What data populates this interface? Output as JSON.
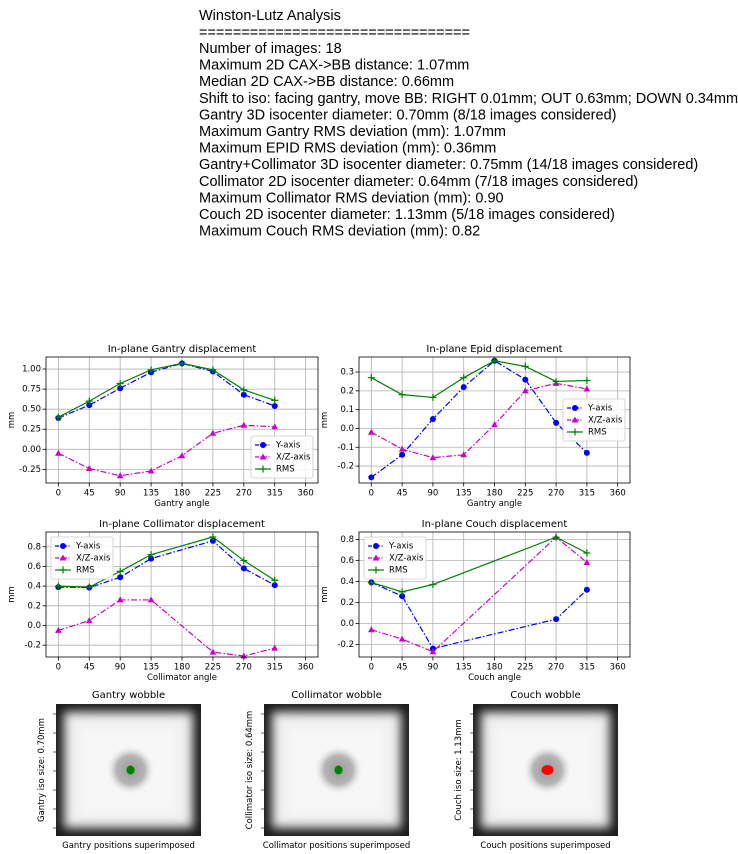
{
  "report": {
    "title": "Winston-Lutz Analysis",
    "separator": "================================",
    "lines": [
      "Number of images: 18",
      "Maximum 2D CAX->BB distance: 1.07mm",
      "Median 2D CAX->BB distance: 0.66mm",
      "Shift to iso: facing gantry, move BB: RIGHT 0.01mm; OUT 0.63mm; DOWN 0.34mm",
      "Gantry 3D isocenter diameter: 0.70mm (8/18 images considered)",
      "Maximum Gantry RMS deviation (mm): 1.07mm",
      "Maximum EPID RMS deviation (mm): 0.36mm",
      "Gantry+Collimator 3D isocenter diameter: 0.75mm (14/18 images considered)",
      "Collimator 2D isocenter diameter: 0.64mm (7/18 images considered)",
      "Maximum Collimator RMS deviation (mm): 0.90",
      "Couch 2D isocenter diameter: 1.13mm (5/18 images considered)",
      "Maximum Couch RMS deviation (mm): 0.82"
    ]
  },
  "chart_data": [
    {
      "type": "line",
      "title": "In-plane Gantry displacement",
      "xlabel": "Gantry angle",
      "ylabel": "mm",
      "x": [
        0,
        45,
        90,
        135,
        180,
        225,
        270,
        315
      ],
      "series": [
        {
          "name": "Y-axis",
          "color": "#0000ff",
          "values": [
            0.39,
            0.55,
            0.76,
            0.96,
            1.07,
            0.97,
            0.68,
            0.54
          ]
        },
        {
          "name": "X/Z-axis",
          "color": "#cc00cc",
          "values": [
            -0.05,
            -0.24,
            -0.33,
            -0.27,
            -0.08,
            0.2,
            0.3,
            0.28
          ]
        },
        {
          "name": "RMS",
          "color": "#008000",
          "values": [
            0.4,
            0.6,
            0.82,
            0.99,
            1.07,
            0.99,
            0.74,
            0.61
          ]
        }
      ],
      "xlim": [
        -18,
        378
      ],
      "xticks": [
        0,
        45,
        90,
        135,
        180,
        225,
        270,
        315,
        360
      ],
      "ylim": [
        -0.42,
        1.15
      ],
      "yticks": [
        -0.25,
        {
          "value": 0,
          "label": "0.00"
        },
        0.25,
        {
          "value": 0.5,
          "label": "0.50"
        },
        0.75,
        {
          "value": 1,
          "label": "1.00"
        }
      ],
      "grid": true,
      "legend": "lower right"
    },
    {
      "type": "line",
      "title": "In-plane Epid displacement",
      "xlabel": "Gantry angle",
      "ylabel": "mm",
      "x": [
        0,
        45,
        90,
        135,
        180,
        225,
        270,
        315
      ],
      "series": [
        {
          "name": "Y-axis",
          "color": "#0000ff",
          "values": [
            -0.26,
            -0.14,
            0.05,
            0.22,
            0.36,
            0.26,
            0.03,
            -0.13
          ]
        },
        {
          "name": "X/Z-axis",
          "color": "#cc00cc",
          "values": [
            -0.02,
            -0.11,
            -0.155,
            -0.14,
            0.02,
            0.2,
            0.24,
            0.21
          ]
        },
        {
          "name": "RMS",
          "color": "#008000",
          "values": [
            0.27,
            0.18,
            0.165,
            0.27,
            0.36,
            0.33,
            0.25,
            0.255
          ]
        }
      ],
      "xlim": [
        -18,
        378
      ],
      "xticks": [
        0,
        45,
        90,
        135,
        180,
        225,
        270,
        315,
        360
      ],
      "ylim": [
        -0.29,
        0.38
      ],
      "yticks": [
        -0.2,
        -0.1,
        {
          "value": 0,
          "label": "0.0"
        },
        0.1,
        0.2,
        0.3
      ],
      "grid": true,
      "legend": "center right"
    },
    {
      "type": "line",
      "title": "In-plane Collimator displacement",
      "xlabel": "Collimator angle",
      "ylabel": "mm",
      "x": [
        0,
        45,
        90,
        135,
        225,
        270,
        315
      ],
      "series": [
        {
          "name": "Y-axis",
          "color": "#0000ff",
          "values": [
            0.39,
            0.385,
            0.49,
            0.68,
            0.86,
            0.58,
            0.41
          ]
        },
        {
          "name": "X/Z-axis",
          "color": "#cc00cc",
          "values": [
            -0.05,
            0.05,
            0.26,
            0.26,
            -0.27,
            -0.31,
            -0.23
          ]
        },
        {
          "name": "RMS",
          "color": "#008000",
          "values": [
            0.4,
            0.39,
            0.55,
            0.72,
            0.9,
            0.66,
            0.46
          ]
        }
      ],
      "xlim": [
        -18,
        378
      ],
      "xticks": [
        0,
        45,
        90,
        135,
        180,
        225,
        270,
        315,
        360
      ],
      "ylim": [
        -0.32,
        0.95
      ],
      "yticks": [
        -0.2,
        {
          "value": 0,
          "label": "0.0"
        },
        0.2,
        0.4,
        0.6,
        0.8
      ],
      "grid": true,
      "legend": "upper left"
    },
    {
      "type": "line",
      "title": "In-plane Couch displacement",
      "xlabel": "Couch angle",
      "ylabel": "mm",
      "x": [
        0,
        45,
        90,
        270,
        315
      ],
      "series": [
        {
          "name": "Y-axis",
          "color": "#0000ff",
          "values": [
            0.39,
            0.26,
            -0.24,
            0.04,
            0.32
          ]
        },
        {
          "name": "X/Z-axis",
          "color": "#cc00cc",
          "values": [
            -0.06,
            -0.15,
            -0.27,
            0.82,
            0.58
          ]
        },
        {
          "name": "RMS",
          "color": "#008000",
          "values": [
            0.39,
            0.3,
            0.37,
            0.82,
            0.67
          ]
        }
      ],
      "xlim": [
        -18,
        378
      ],
      "xticks": [
        0,
        45,
        90,
        135,
        180,
        225,
        270,
        315,
        360
      ],
      "ylim": [
        -0.32,
        0.87
      ],
      "yticks": [
        -0.2,
        {
          "value": 0,
          "label": "0.0"
        },
        0.2,
        0.4,
        0.6,
        0.8
      ],
      "grid": true,
      "legend": "upper left"
    }
  ],
  "wobble": [
    {
      "title": "Gantry wobble",
      "ylabel": "Gantry iso size: 0.70mm",
      "xlabel": "Gantry positions superimposed",
      "color": "#008000"
    },
    {
      "title": "Collimator wobble",
      "ylabel": "Collimator iso size: 0.64mm",
      "xlabel": "Collimator positions superimposed",
      "color": "#008000"
    },
    {
      "title": "Couch wobble",
      "ylabel": "Couch iso size: 1.13mm",
      "xlabel": "Couch positions superimposed",
      "color": "#ff0000"
    }
  ]
}
